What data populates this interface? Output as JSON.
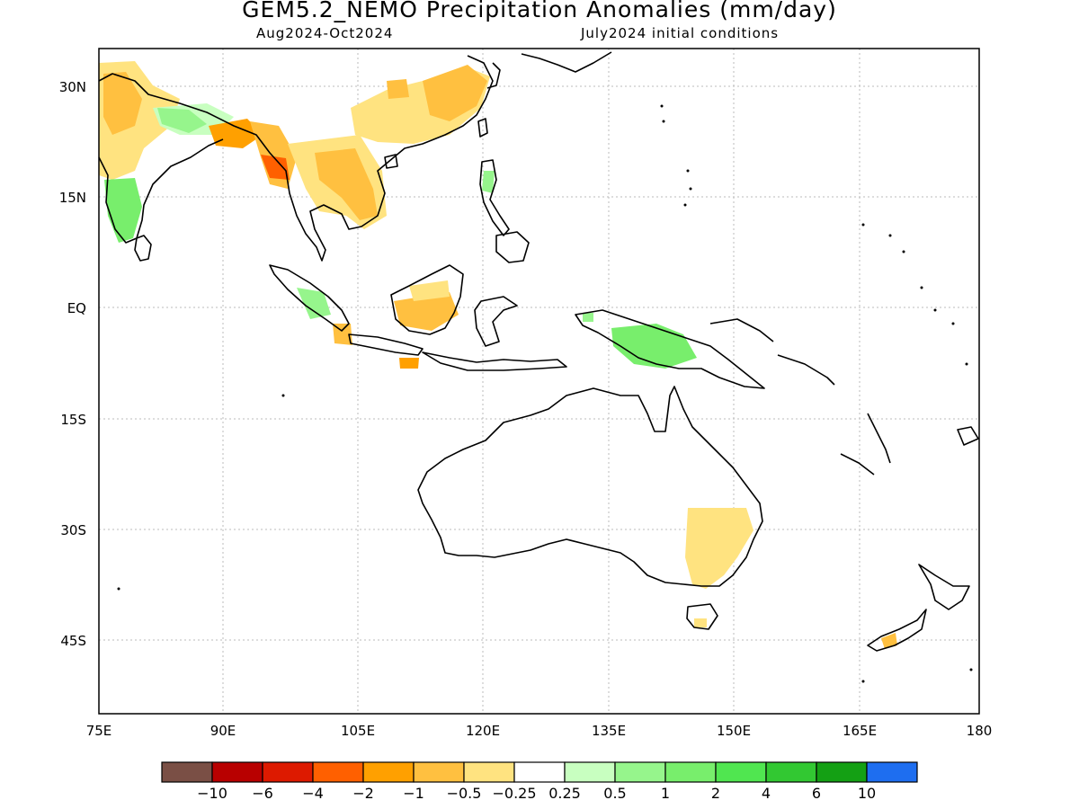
{
  "title": "GEM5.2_NEMO Precipitation Anomalies (mm/day)",
  "subtitle_left": "Aug2024-Oct2024",
  "subtitle_right": "July2024 initial conditions",
  "lon_ticks": [
    "75E",
    "90E",
    "105E",
    "120E",
    "135E",
    "150E",
    "165E",
    "180"
  ],
  "lat_ticks": [
    "30N",
    "15N",
    "EQ",
    "15S",
    "30S",
    "45S"
  ],
  "colorbar": {
    "colors": [
      "#7a4f45",
      "#b80000",
      "#dd1a00",
      "#ff6000",
      "#ffa000",
      "#ffc040",
      "#ffe380",
      "#ffffff",
      "#c8ffc0",
      "#96f58c",
      "#78ee6c",
      "#50e650",
      "#32c832",
      "#14a014",
      "#1e6ef0"
    ],
    "labels": [
      "-10",
      "-6",
      "-4",
      "-2",
      "-1",
      "-0.5",
      "-0.25",
      "0.25",
      "0.5",
      "1",
      "2",
      "4",
      "6",
      "10"
    ]
  }
}
